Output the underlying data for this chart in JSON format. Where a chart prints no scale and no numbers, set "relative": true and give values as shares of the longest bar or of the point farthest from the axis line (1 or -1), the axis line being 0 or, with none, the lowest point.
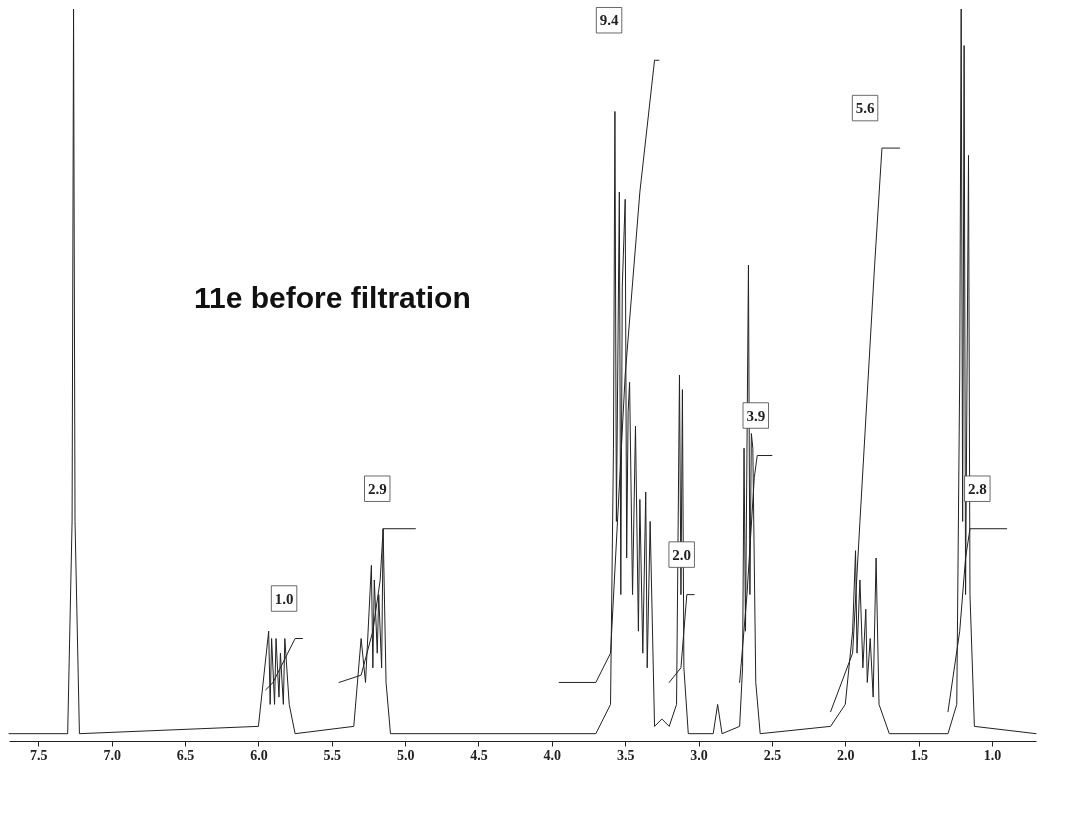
{
  "chart_data": {
    "type": "line",
    "title": "11e before filtration",
    "relative": true,
    "grid": false,
    "marker": "none",
    "line_style": "solid",
    "xlim": [
      7.7,
      0.7
    ],
    "xticks": [
      {
        "value": 7.5,
        "label": "7.5"
      },
      {
        "value": 7,
        "label": "7.0"
      },
      {
        "value": 6.5,
        "label": "6.5"
      },
      {
        "value": 6,
        "label": "6.0"
      },
      {
        "value": 5.5,
        "label": "5.5"
      },
      {
        "value": 5,
        "label": "5.0"
      },
      {
        "value": 4.5,
        "label": "4.5"
      },
      {
        "value": 4,
        "label": "4.0"
      },
      {
        "value": 3.5,
        "label": "3.5"
      },
      {
        "value": 3,
        "label": "3.0"
      },
      {
        "value": 2.5,
        "label": "2.5"
      },
      {
        "value": 2,
        "label": "2.0"
      },
      {
        "value": 1.5,
        "label": "1.5"
      },
      {
        "value": 1,
        "label": "1.0"
      }
    ],
    "series": [
      {
        "color": "#222222",
        "x": [
          7.7,
          7.3,
          7.27,
          7.26,
          7.25,
          7.22,
          6.0,
          5.93,
          5.92,
          5.91,
          5.89,
          5.88,
          5.86,
          5.85,
          5.83,
          5.82,
          5.79,
          5.75,
          5.35,
          5.3,
          5.27,
          5.23,
          5.22,
          5.21,
          5.19,
          5.18,
          5.16,
          5.15,
          5.13,
          5.1,
          3.7,
          3.6,
          3.58,
          3.57,
          3.56,
          3.54,
          3.53,
          3.52,
          3.5,
          3.49,
          3.48,
          3.47,
          3.45,
          3.43,
          3.41,
          3.4,
          3.38,
          3.36,
          3.35,
          3.33,
          3.3,
          3.25,
          3.2,
          3.15,
          3.13,
          3.12,
          3.11,
          3.1,
          3.07,
          2.9,
          2.87,
          2.84,
          2.72,
          2.7,
          2.69,
          2.68,
          2.66,
          2.65,
          2.64,
          2.63,
          2.61,
          2.58,
          2.1,
          2.0,
          1.95,
          1.93,
          1.92,
          1.9,
          1.88,
          1.86,
          1.85,
          1.83,
          1.81,
          1.79,
          1.77,
          1.7,
          1.3,
          1.24,
          1.22,
          1.21,
          1.2,
          1.19,
          1.18,
          1.16,
          1.15,
          1.12,
          0.7
        ],
        "values": [
          0.01,
          0.01,
          0.3,
          1.0,
          0.3,
          0.01,
          0.02,
          0.15,
          0.05,
          0.14,
          0.05,
          0.14,
          0.06,
          0.12,
          0.05,
          0.14,
          0.05,
          0.01,
          0.02,
          0.14,
          0.08,
          0.24,
          0.1,
          0.22,
          0.12,
          0.2,
          0.1,
          0.29,
          0.08,
          0.01,
          0.01,
          0.05,
          0.4,
          0.86,
          0.3,
          0.75,
          0.2,
          0.62,
          0.74,
          0.25,
          0.45,
          0.49,
          0.2,
          0.43,
          0.15,
          0.33,
          0.12,
          0.34,
          0.1,
          0.3,
          0.02,
          0.03,
          0.02,
          0.05,
          0.5,
          0.2,
          0.48,
          0.1,
          0.01,
          0.01,
          0.05,
          0.01,
          0.02,
          0.1,
          0.4,
          0.15,
          0.65,
          0.2,
          0.42,
          0.4,
          0.08,
          0.01,
          0.02,
          0.05,
          0.15,
          0.26,
          0.12,
          0.22,
          0.1,
          0.18,
          0.08,
          0.14,
          0.06,
          0.25,
          0.05,
          0.01,
          0.01,
          0.05,
          0.5,
          1.0,
          0.3,
          0.95,
          0.2,
          0.8,
          0.2,
          0.02,
          0.01
        ]
      },
      {
        "color": "#222222",
        "x": [
          5.95,
          5.9,
          5.85,
          5.8,
          5.75,
          5.7
        ],
        "values": [
          0.07,
          0.08,
          0.1,
          0.12,
          0.14,
          0.14
        ]
      },
      {
        "color": "#222222",
        "x": [
          5.45,
          5.3,
          5.22,
          5.17,
          5.15,
          4.93
        ],
        "values": [
          0.08,
          0.09,
          0.15,
          0.22,
          0.29,
          0.29
        ]
      },
      {
        "color": "#222222",
        "x": [
          3.95,
          3.7,
          3.6,
          3.5,
          3.4,
          3.3,
          3.27
        ],
        "values": [
          0.08,
          0.08,
          0.12,
          0.5,
          0.75,
          0.93,
          0.93
        ]
      },
      {
        "color": "#222222",
        "x": [
          3.2,
          3.12,
          3.08,
          3.03
        ],
        "values": [
          0.08,
          0.1,
          0.2,
          0.2
        ]
      },
      {
        "color": "#222222",
        "x": [
          2.72,
          2.67,
          2.62,
          2.6,
          2.5
        ],
        "values": [
          0.08,
          0.2,
          0.36,
          0.39,
          0.39
        ]
      },
      {
        "color": "#222222",
        "x": [
          2.1,
          1.95,
          1.9,
          1.8,
          1.75,
          1.63
        ],
        "values": [
          0.04,
          0.12,
          0.3,
          0.65,
          0.81,
          0.81
        ]
      },
      {
        "color": "#222222",
        "x": [
          1.3,
          1.22,
          1.18,
          1.15,
          0.9
        ],
        "values": [
          0.04,
          0.15,
          0.25,
          0.29,
          0.29
        ]
      }
    ],
    "annotations": [
      "1.0",
      "2.9",
      "9.4",
      "2.0",
      "3.9",
      "5.6",
      "2.8"
    ]
  }
}
